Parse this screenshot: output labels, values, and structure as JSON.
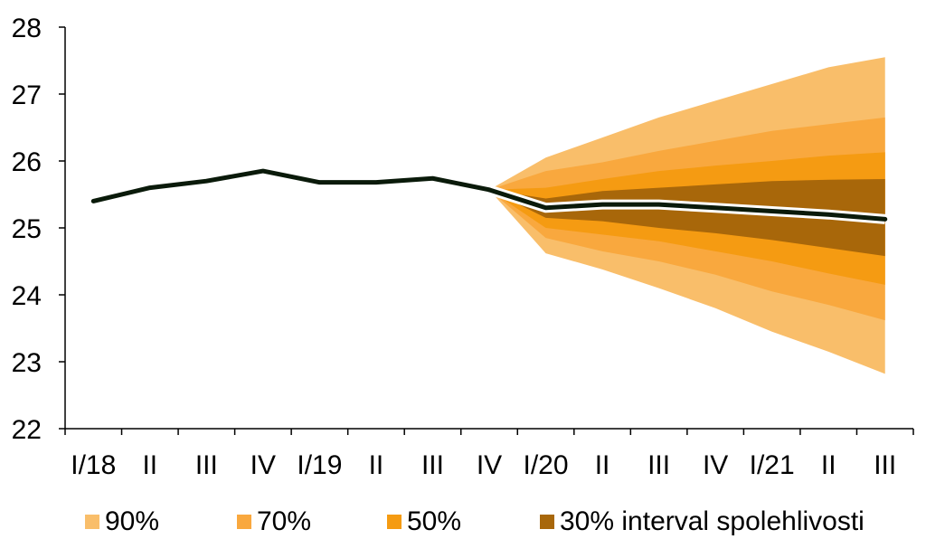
{
  "chart_data": {
    "type": "area",
    "categories": [
      "I/18",
      "II",
      "III",
      "IV",
      "I/19",
      "II",
      "III",
      "IV",
      "I/20",
      "II",
      "III",
      "IV",
      "I/21",
      "II",
      "III"
    ],
    "ylim": [
      22,
      28
    ],
    "yticks": [
      22,
      23,
      24,
      25,
      26,
      27,
      28
    ],
    "xlabel": "",
    "ylabel": "",
    "grid": false,
    "legend_position": "bottom",
    "series": [
      {
        "values": [
          25.4,
          25.6,
          25.7,
          25.85,
          25.68,
          25.68,
          25.74,
          25.57,
          25.3,
          25.35,
          25.35,
          25.3,
          25.25,
          25.2,
          25.13
        ],
        "color": "#0a1a0a"
      }
    ],
    "fan": {
      "start_category": "IV",
      "start_value": 25.57,
      "intervals": [
        {
          "name": "90%",
          "color": "#F9BE6A",
          "upper": [
            25.57,
            26.05,
            26.35,
            26.65,
            26.9,
            27.15,
            27.4,
            27.55
          ],
          "lower": [
            25.57,
            24.62,
            24.38,
            24.1,
            23.8,
            23.45,
            23.15,
            22.82
          ]
        },
        {
          "name": "70%",
          "color": "#F9A83E",
          "upper": [
            25.57,
            25.85,
            25.98,
            26.15,
            26.3,
            26.45,
            26.55,
            26.65
          ]
        },
        {
          "name": "50%",
          "color": "#F59B12",
          "upper": [
            25.57,
            25.6,
            25.73,
            25.85,
            25.93,
            26.0,
            26.08,
            26.13
          ]
        },
        {
          "name": "30% interval spolehlivosti",
          "color": "#A8670A",
          "upper": [
            25.57,
            25.44,
            25.55,
            25.6,
            25.65,
            25.7,
            25.72,
            25.73
          ]
        }
      ],
      "lower_extra": {
        "70%": [
          25.57,
          24.85,
          24.65,
          24.5,
          24.3,
          24.05,
          23.85,
          23.62
        ],
        "50%": [
          25.57,
          25.0,
          24.9,
          24.8,
          24.65,
          24.5,
          24.32,
          24.15
        ],
        "30%": [
          25.57,
          25.15,
          25.1,
          25.0,
          24.92,
          24.82,
          24.7,
          24.58
        ]
      }
    }
  },
  "legend": {
    "items": [
      {
        "label": "90%",
        "color": "#F9BE6A"
      },
      {
        "label": "70%",
        "color": "#F9A83E"
      },
      {
        "label": "50%",
        "color": "#F59B12"
      },
      {
        "label": "30% interval spolehlivosti",
        "color": "#A8670A"
      }
    ]
  }
}
